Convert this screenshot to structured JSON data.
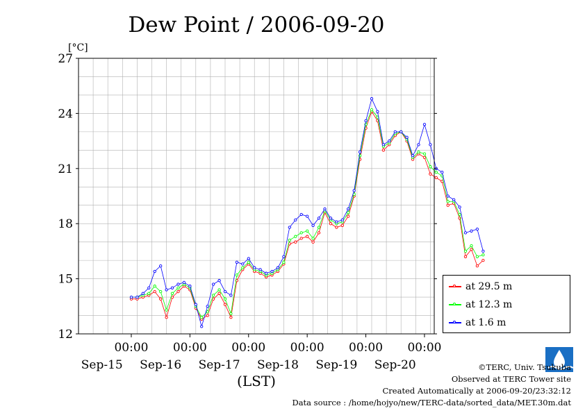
{
  "chart_data": {
    "type": "line",
    "title": "Dew Point / 2006-09-20",
    "ylabel": "[°C]",
    "xlabel": "(LST)",
    "ylim": [
      12,
      27
    ],
    "yticks": [
      "12",
      "15",
      "18",
      "21",
      "24",
      "27"
    ],
    "day_ticks": [
      "00:00",
      "00:00",
      "00:00",
      "00:00",
      "00:00",
      "00:00"
    ],
    "day_labels": [
      "Sep-15",
      "Sep-16",
      "Sep-17",
      "Sep-18",
      "Sep-19",
      "Sep-20"
    ],
    "grid": true,
    "legend_position": "right",
    "series": [
      {
        "name": "at 29.5 m",
        "color": "#ff0000",
        "x": [
          0,
          0.1,
          0.2,
          0.3,
          0.4,
          0.5,
          0.6,
          0.7,
          0.8,
          0.9,
          1,
          1.1,
          1.2,
          1.3,
          1.4,
          1.5,
          1.6,
          1.7,
          1.8,
          1.9,
          2,
          2.1,
          2.2,
          2.3,
          2.4,
          2.5,
          2.6,
          2.7,
          2.8,
          2.9,
          3,
          3.1,
          3.2,
          3.3,
          3.4,
          3.5,
          3.6,
          3.7,
          3.8,
          3.9,
          4,
          4.1,
          4.2,
          4.3,
          4.4,
          4.5,
          4.6,
          4.7,
          4.8,
          4.9,
          5,
          5.1,
          5.2,
          5.3,
          5.4,
          5.5,
          5.6,
          5.7,
          5.8,
          5.9,
          6
        ],
        "y": [
          13.9,
          13.9,
          14.0,
          14.1,
          14.3,
          13.9,
          12.9,
          14.0,
          14.3,
          14.6,
          14.4,
          13.4,
          12.8,
          13.0,
          13.9,
          14.2,
          13.6,
          12.9,
          14.9,
          15.5,
          15.8,
          15.4,
          15.3,
          15.1,
          15.2,
          15.4,
          15.8,
          16.9,
          17.0,
          17.2,
          17.3,
          17.0,
          17.5,
          18.6,
          18.0,
          17.8,
          17.9,
          18.4,
          19.5,
          21.5,
          23.2,
          24.1,
          23.6,
          22.0,
          22.3,
          22.8,
          23.0,
          22.5,
          21.5,
          21.8,
          21.6,
          20.7,
          20.5,
          20.3,
          19.0,
          19.1,
          18.3,
          16.2,
          16.6,
          15.7,
          16.0
        ]
      },
      {
        "name": "at 12.3 m",
        "color": "#00ff00",
        "x": [
          0,
          0.1,
          0.2,
          0.3,
          0.4,
          0.5,
          0.6,
          0.7,
          0.8,
          0.9,
          1,
          1.1,
          1.2,
          1.3,
          1.4,
          1.5,
          1.6,
          1.7,
          1.8,
          1.9,
          2,
          2.1,
          2.2,
          2.3,
          2.4,
          2.5,
          2.6,
          2.7,
          2.8,
          2.9,
          3,
          3.1,
          3.2,
          3.3,
          3.4,
          3.5,
          3.6,
          3.7,
          3.8,
          3.9,
          4,
          4.1,
          4.2,
          4.3,
          4.4,
          4.5,
          4.6,
          4.7,
          4.8,
          4.9,
          5,
          5.1,
          5.2,
          5.3,
          5.4,
          5.5,
          5.6,
          5.7,
          5.8,
          5.9,
          6
        ],
        "y": [
          14.0,
          14.0,
          14.1,
          14.2,
          14.6,
          14.3,
          13.3,
          14.2,
          14.5,
          14.7,
          14.5,
          13.5,
          12.9,
          13.2,
          14.1,
          14.4,
          13.9,
          13.1,
          15.2,
          15.6,
          15.9,
          15.5,
          15.4,
          15.2,
          15.3,
          15.5,
          15.9,
          17.1,
          17.3,
          17.5,
          17.6,
          17.2,
          17.8,
          18.7,
          18.2,
          18.0,
          18.1,
          18.6,
          19.6,
          21.7,
          23.4,
          24.2,
          23.8,
          22.2,
          22.4,
          22.9,
          23.0,
          22.6,
          21.6,
          21.9,
          21.8,
          21.1,
          20.8,
          20.6,
          19.2,
          19.2,
          18.5,
          16.5,
          16.8,
          16.2,
          16.3
        ]
      },
      {
        "name": "at 1.6 m",
        "color": "#0000ff",
        "x": [
          0,
          0.1,
          0.2,
          0.3,
          0.4,
          0.5,
          0.6,
          0.7,
          0.8,
          0.9,
          1,
          1.1,
          1.2,
          1.3,
          1.4,
          1.5,
          1.6,
          1.7,
          1.8,
          1.9,
          2,
          2.1,
          2.2,
          2.3,
          2.4,
          2.5,
          2.6,
          2.7,
          2.8,
          2.9,
          3,
          3.1,
          3.2,
          3.3,
          3.4,
          3.5,
          3.6,
          3.7,
          3.8,
          3.9,
          4,
          4.1,
          4.2,
          4.3,
          4.4,
          4.5,
          4.6,
          4.7,
          4.8,
          4.9,
          5,
          5.1,
          5.2,
          5.3,
          5.4,
          5.5,
          5.6,
          5.7,
          5.8,
          5.9,
          6
        ],
        "y": [
          14.0,
          14.0,
          14.2,
          14.5,
          15.4,
          15.7,
          14.4,
          14.5,
          14.7,
          14.8,
          14.6,
          13.6,
          12.4,
          13.5,
          14.7,
          14.9,
          14.3,
          14.1,
          15.9,
          15.8,
          16.1,
          15.6,
          15.5,
          15.3,
          15.4,
          15.6,
          16.2,
          17.8,
          18.2,
          18.5,
          18.4,
          17.9,
          18.3,
          18.8,
          18.3,
          18.1,
          18.2,
          18.8,
          19.8,
          21.9,
          23.6,
          24.8,
          24.1,
          22.3,
          22.5,
          23.0,
          23.0,
          22.7,
          21.7,
          22.3,
          23.4,
          22.3,
          21.0,
          20.8,
          19.5,
          19.3,
          18.9,
          17.5,
          17.6,
          17.7,
          16.5
        ]
      }
    ]
  },
  "footer": {
    "copyright": "©TERC, Univ. Tsukuba",
    "observed": "Observed at TERC Tower site",
    "created": "Created Automatically at 2006-09-20/23:32:12",
    "source": "Data source : /home/hojyo/new/TERC-data/sorted_data/MET.30m.dat"
  }
}
